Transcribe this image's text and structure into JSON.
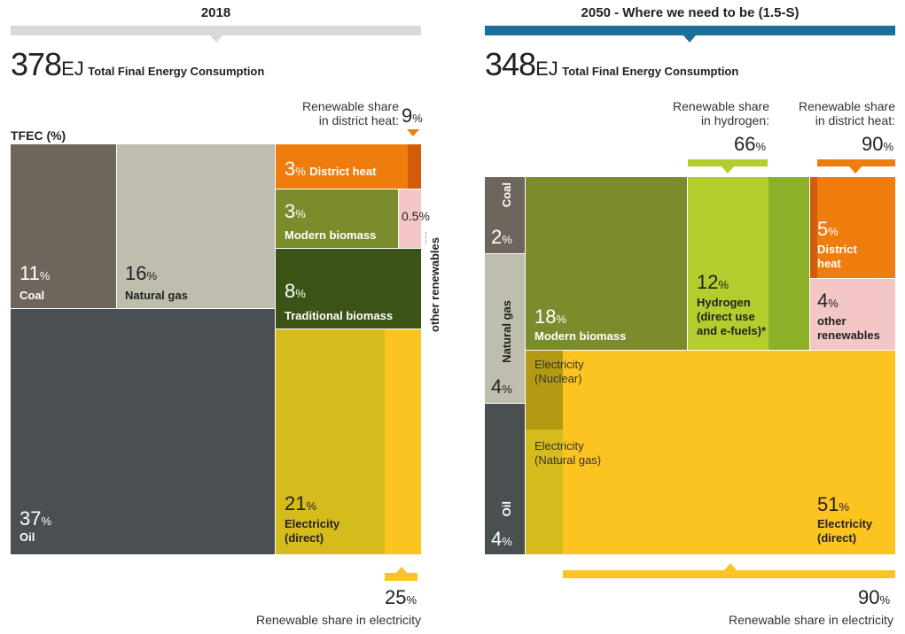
{
  "colors": {
    "coal": "#6e665d",
    "natural_gas": "#bfbdae",
    "oil": "#4a4f52",
    "district_heat": "#ee7d0e",
    "district_heat_dark": "#d45b0a",
    "modern_biomass": "#7b8c2c",
    "other_renewables": "#f2c7c6",
    "traditional_biomass": "#3b5416",
    "electricity_dark": "#d6bb1c",
    "electricity": "#fcc421",
    "hydrogen_light": "#b5cc2e",
    "hydrogen_mid": "#8db02a",
    "nuclear": "#b39a14",
    "header_2018": "#d9d9d9",
    "header_2050": "#1a6f9b"
  },
  "chart_data": [
    {
      "type": "treemap",
      "title": "2018",
      "total_value": "378",
      "total_unit": "EJ",
      "total_label": "Total Final Energy Consumption",
      "axis_label": "TFEC (%)",
      "categories": [
        "Coal",
        "Natural gas",
        "Oil",
        "District heat",
        "Modern biomass",
        "other renewables",
        "Traditional biomass",
        "Electricity (direct)"
      ],
      "values": [
        11,
        16,
        37,
        3,
        3,
        0.5,
        8,
        21
      ],
      "renewable_shares": [
        {
          "label": "Renewable share in district heat:",
          "value": 9
        },
        {
          "label": "Renewable share in electricity",
          "value": 25
        }
      ]
    },
    {
      "type": "treemap",
      "title": "2050 - Where we need to be (1.5-S)",
      "total_value": "348",
      "total_unit": "EJ",
      "total_label": "Total Final Energy Consumption",
      "categories": [
        "Coal",
        "Natural gas",
        "Oil",
        "Modern biomass",
        "Hydrogen (direct use and e-fuels)*",
        "District heat",
        "other renewables",
        "Electricity (direct)"
      ],
      "values": [
        2,
        4,
        4,
        18,
        12,
        5,
        4,
        51
      ],
      "renewable_shares": [
        {
          "label": "Renewable share in hydrogen:",
          "value": 66
        },
        {
          "label": "Renewable share in district heat:",
          "value": 90
        },
        {
          "label": "Renewable share in electricity",
          "value": 90
        }
      ]
    }
  ],
  "left": {
    "header": "2018",
    "total": "378",
    "unit": "EJ",
    "total_label": "Total Final Energy Consumption",
    "tfec": "TFEC (%)",
    "coal": {
      "num": "11",
      "label": "Coal"
    },
    "gas": {
      "num": "16",
      "label": "Natural gas"
    },
    "oil": {
      "num": "37",
      "label": "Oil"
    },
    "dheat": {
      "num": "3",
      "label": "District heat"
    },
    "mbio": {
      "num": "3",
      "label": "Modern biomass"
    },
    "other_pct": "0.5%",
    "tbio": {
      "num": "8",
      "label": "Traditional biomass"
    },
    "elec": {
      "num": "21",
      "label1": "Electricity",
      "label2": "(direct)"
    },
    "other_vertical": "other renewables",
    "dh_share_l1": "Renewable share",
    "dh_share_l2": "in district heat:",
    "dh_share_num": "9",
    "el_share_num": "25",
    "el_share_label": "Renewable share in electricity"
  },
  "right": {
    "header": "2050  -  Where we need to be (1.5-S)",
    "total": "348",
    "unit": "EJ",
    "total_label": "Total Final Energy Consumption",
    "coal": {
      "num": "2",
      "label": "Coal"
    },
    "gas": {
      "num": "4",
      "label": "Natural gas"
    },
    "oil": {
      "num": "4",
      "label": "Oil"
    },
    "mbio": {
      "num": "18",
      "label": "Modern biomass"
    },
    "hydro": {
      "num": "12",
      "l1": "Hydrogen",
      "l2": "(direct use",
      "l3": "and e-fuels)*"
    },
    "dheat": {
      "num": "5",
      "l1": "District",
      "l2": "heat"
    },
    "other": {
      "num": "4",
      "l1": "other",
      "l2": "renewables"
    },
    "nuclear": {
      "l1": "Electricity",
      "l2": "(Nuclear)"
    },
    "natgas_el": {
      "l1": "Electricity",
      "l2": "(Natural gas)"
    },
    "elec": {
      "num": "51",
      "l1": "Electricity",
      "l2": "(direct)"
    },
    "h_share_l1": "Renewable share",
    "h_share_l2": "in hydrogen:",
    "h_share_num": "66",
    "dh_share_l1": "Renewable share",
    "dh_share_l2": "in district heat:",
    "dh_share_num": "90",
    "el_share_num": "90",
    "el_share_label": "Renewable share in electricity"
  },
  "pct_sign": "%"
}
